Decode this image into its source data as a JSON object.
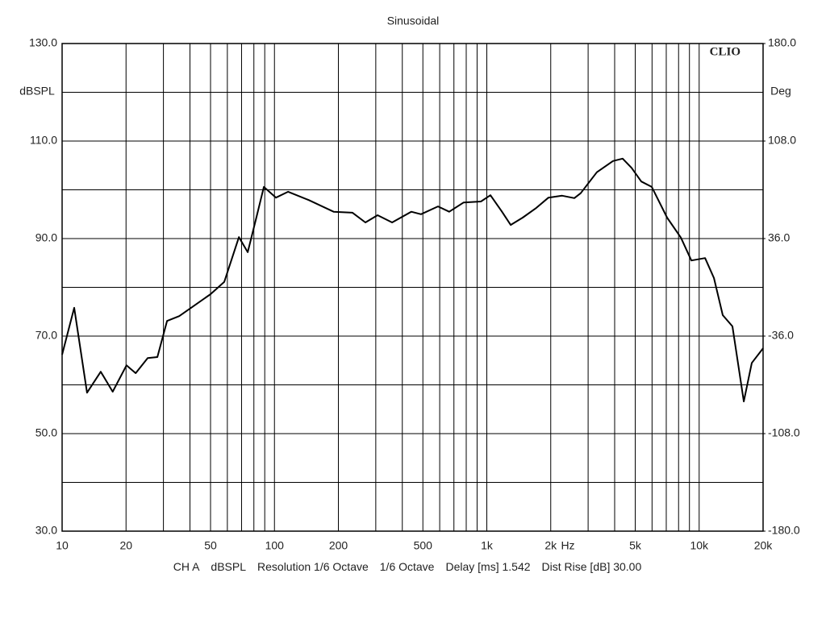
{
  "chart_data": {
    "type": "line",
    "title": "Sinusoidal",
    "annotation": "CLIO",
    "y_axis_label": "dBSPL",
    "y2_axis_label": "Deg",
    "x_axis_label": "Hz",
    "footer": [
      "CH A",
      "dBSPL",
      "Resolution 1/6 Octave",
      "1/6 Octave",
      "Delay [ms] 1.542",
      "Dist Rise [dB] 30.00"
    ],
    "x_scale": "log",
    "grid": true,
    "xlim": [
      10,
      20000
    ],
    "xticks": [
      10,
      20,
      50,
      100,
      200,
      500,
      {
        "value": 1000,
        "label": "1k"
      },
      {
        "value": 2000,
        "label": "2k"
      },
      {
        "value": 5000,
        "label": "5k"
      },
      {
        "value": 10000,
        "label": "10k"
      },
      {
        "value": 20000,
        "label": "20k"
      }
    ],
    "xgrid_minor": [
      30,
      40,
      60,
      70,
      80,
      90,
      300,
      400,
      600,
      700,
      800,
      900,
      3000,
      4000,
      6000,
      7000,
      8000,
      9000
    ],
    "ylim": [
      30,
      130
    ],
    "yticks": [
      {
        "value": 30,
        "label": "30.0"
      },
      {
        "value": 50,
        "label": "50.0"
      },
      {
        "value": 70,
        "label": "70.0"
      },
      {
        "value": 90,
        "label": "90.0"
      },
      {
        "value": 110,
        "label": "110.0"
      },
      {
        "value": 130,
        "label": "130.0"
      }
    ],
    "ygrid_minor": [
      40,
      60,
      80,
      100,
      120
    ],
    "y2lim": [
      -180,
      180
    ],
    "y2ticks": [
      {
        "value": -180,
        "label": "-180.0"
      },
      {
        "value": -108,
        "label": "-108.0"
      },
      {
        "value": -36,
        "label": "-36.0"
      },
      {
        "value": 36,
        "label": "36.0"
      },
      {
        "value": 108,
        "label": "108.0"
      },
      {
        "value": 180,
        "label": "180.0"
      }
    ],
    "series": [
      {
        "name": "dBSPL",
        "color": "#000000",
        "x": [
          10,
          11.4,
          13.1,
          15.2,
          17.3,
          20.1,
          22.2,
          25.3,
          28.1,
          31.2,
          35.6,
          50,
          58,
          68,
          74.8,
          82.2,
          89.1,
          101.6,
          116,
          145,
          190,
          233,
          268,
          306,
          358,
          441,
          490,
          589,
          665,
          778,
          938,
          1040,
          1175,
          1295,
          1476,
          1711,
          1950,
          2264,
          2582,
          2768,
          3296,
          3926,
          4362,
          4806,
          5337,
          5984,
          7063,
          8200,
          9190,
          10660,
          11740,
          12920,
          14350,
          16230,
          17700,
          20000
        ],
        "values": [
          66.2,
          75.8,
          58.4,
          62.7,
          58.6,
          64.0,
          62.4,
          65.5,
          65.7,
          73.1,
          74.1,
          78.6,
          81.1,
          90.3,
          87.2,
          94.3,
          100.6,
          98.4,
          99.6,
          97.9,
          95.5,
          95.3,
          93.3,
          94.8,
          93.3,
          95.5,
          95.0,
          96.6,
          95.5,
          97.4,
          97.6,
          98.9,
          95.6,
          92.8,
          94.3,
          96.3,
          98.4,
          98.8,
          98.3,
          99.3,
          103.6,
          105.9,
          106.4,
          104.5,
          101.7,
          100.6,
          94.3,
          90.2,
          85.5,
          86.0,
          81.9,
          74.3,
          72.0,
          56.6,
          64.5,
          67.5
        ]
      }
    ]
  }
}
